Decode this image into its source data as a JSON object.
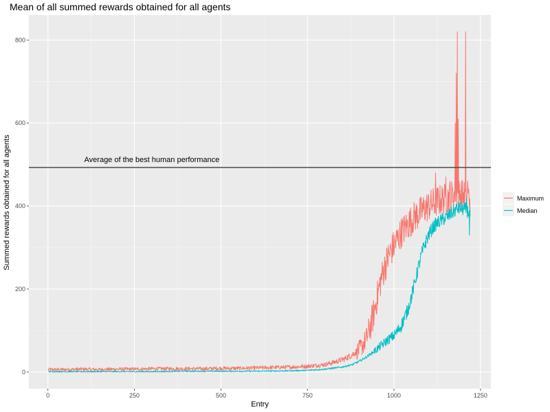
{
  "chart_data": {
    "type": "line",
    "title": "Mean of all summed rewards obtained for all agents",
    "xlabel": "Entry",
    "ylabel": "Summed rewards obtained for all agents",
    "xlim": [
      -55,
      1280
    ],
    "ylim": [
      -40,
      860
    ],
    "x_ticks": [
      0,
      250,
      500,
      750,
      1000,
      1250
    ],
    "y_ticks": [
      0,
      200,
      400,
      600,
      800
    ],
    "grid": true,
    "legend_position": "right",
    "reference_line": {
      "y": 493,
      "label": "Average of the best human performance",
      "color": "#4d4d4d"
    },
    "series": [
      {
        "name": "Maximum",
        "color": "#F8766D",
        "points": [
          [
            1,
            6
          ],
          [
            50,
            6
          ],
          [
            100,
            7
          ],
          [
            150,
            6
          ],
          [
            200,
            7
          ],
          [
            250,
            7
          ],
          [
            300,
            8
          ],
          [
            350,
            8
          ],
          [
            400,
            8
          ],
          [
            450,
            8
          ],
          [
            500,
            9
          ],
          [
            550,
            9
          ],
          [
            600,
            10
          ],
          [
            650,
            11
          ],
          [
            700,
            12
          ],
          [
            750,
            14
          ],
          [
            800,
            18
          ],
          [
            820,
            22
          ],
          [
            840,
            27
          ],
          [
            860,
            33
          ],
          [
            880,
            42
          ],
          [
            900,
            55
          ],
          [
            910,
            65
          ],
          [
            920,
            80
          ],
          [
            930,
            105
          ],
          [
            940,
            135
          ],
          [
            950,
            175
          ],
          [
            960,
            215
          ],
          [
            970,
            245
          ],
          [
            980,
            270
          ],
          [
            990,
            290
          ],
          [
            1000,
            305
          ],
          [
            1010,
            320
          ],
          [
            1020,
            335
          ],
          [
            1030,
            345
          ],
          [
            1040,
            355
          ],
          [
            1050,
            365
          ],
          [
            1060,
            375
          ],
          [
            1070,
            380
          ],
          [
            1080,
            388
          ],
          [
            1090,
            395
          ],
          [
            1100,
            400
          ],
          [
            1110,
            405
          ],
          [
            1120,
            410
          ],
          [
            1130,
            413
          ],
          [
            1140,
            416
          ],
          [
            1150,
            418
          ],
          [
            1160,
            420
          ],
          [
            1170,
            425
          ],
          [
            1180,
            430
          ],
          [
            1190,
            428
          ],
          [
            1200,
            425
          ],
          [
            1210,
            422
          ],
          [
            1220,
            420
          ]
        ],
        "spikes": [
          [
            1177,
            600
          ],
          [
            1180,
            720
          ],
          [
            1183,
            820
          ],
          [
            1186,
            610
          ],
          [
            1195,
            460
          ],
          [
            1207,
            820
          ],
          [
            1213,
            460
          ],
          [
            1120,
            480
          ],
          [
            1150,
            470
          ],
          [
            1162,
            460
          ]
        ],
        "noise": 14
      },
      {
        "name": "Median",
        "color": "#00BFC4",
        "points": [
          [
            1,
            1
          ],
          [
            100,
            1
          ],
          [
            200,
            1
          ],
          [
            300,
            1
          ],
          [
            400,
            2
          ],
          [
            500,
            2
          ],
          [
            600,
            2
          ],
          [
            700,
            3
          ],
          [
            750,
            4
          ],
          [
            800,
            7
          ],
          [
            850,
            12
          ],
          [
            880,
            18
          ],
          [
            900,
            26
          ],
          [
            920,
            36
          ],
          [
            940,
            48
          ],
          [
            960,
            62
          ],
          [
            980,
            76
          ],
          [
            1000,
            88
          ],
          [
            1020,
            110
          ],
          [
            1040,
            150
          ],
          [
            1050,
            180
          ],
          [
            1060,
            215
          ],
          [
            1070,
            250
          ],
          [
            1080,
            285
          ],
          [
            1090,
            310
          ],
          [
            1100,
            330
          ],
          [
            1110,
            345
          ],
          [
            1120,
            355
          ],
          [
            1130,
            362
          ],
          [
            1140,
            367
          ],
          [
            1150,
            372
          ],
          [
            1160,
            378
          ],
          [
            1170,
            385
          ],
          [
            1180,
            392
          ],
          [
            1190,
            395
          ],
          [
            1200,
            393
          ],
          [
            1210,
            390
          ],
          [
            1220,
            380
          ]
        ],
        "spikes": [
          [
            1210,
            420
          ],
          [
            1218,
            330
          ],
          [
            1222,
            430
          ]
        ],
        "noise": 6
      }
    ]
  }
}
